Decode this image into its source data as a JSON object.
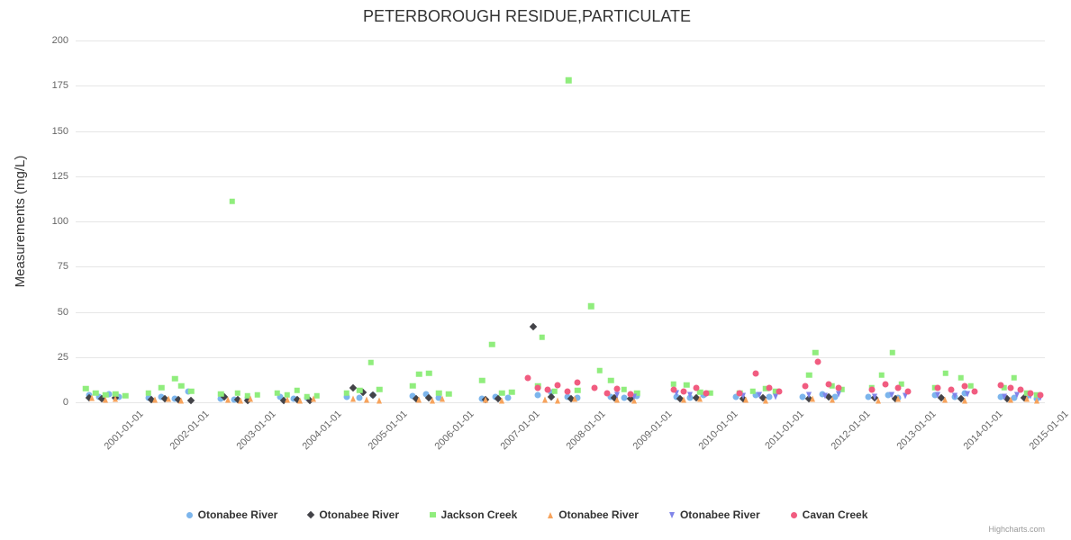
{
  "credits": {
    "label": "Highcharts.com"
  },
  "chart_data": {
    "type": "scatter",
    "title": "PETERBOROUGH RESIDUE,PARTICULATE",
    "xlabel": "",
    "ylabel": "Measurements (mg/L)",
    "ylim": [
      0,
      200
    ],
    "yticks": [
      0,
      25,
      50,
      75,
      100,
      125,
      150,
      175,
      200
    ],
    "x_range": [
      2000.0,
      2014.67
    ],
    "xtick_years": [
      2001,
      2002,
      2003,
      2004,
      2005,
      2006,
      2007,
      2008,
      2009,
      2010,
      2011,
      2012,
      2013,
      2014,
      2015
    ],
    "xtick_labels": [
      "2001-01-01",
      "2002-01-01",
      "2003-01-01",
      "2004-01-01",
      "2005-01-01",
      "2006-01-01",
      "2007-01-01",
      "2008-01-01",
      "2009-01-01",
      "2010-01-01",
      "2011-01-01",
      "2012-01-01",
      "2013-01-01",
      "2014-01-01",
      "2015-01-01"
    ],
    "grid": "horizontal",
    "legend_position": "bottom",
    "series": [
      {
        "name": "Otonabee River",
        "shape": "circle",
        "color": "#7cb5ec",
        "data": [
          [
            2000.2,
            4
          ],
          [
            2000.35,
            3
          ],
          [
            2000.5,
            4.5
          ],
          [
            2000.65,
            3
          ],
          [
            2001.1,
            2.5
          ],
          [
            2001.3,
            3
          ],
          [
            2001.5,
            2
          ],
          [
            2001.7,
            6
          ],
          [
            2002.2,
            2
          ],
          [
            2002.4,
            1.5
          ],
          [
            2002.6,
            2.5
          ],
          [
            2003.1,
            3
          ],
          [
            2003.3,
            2
          ],
          [
            2003.5,
            2.5
          ],
          [
            2004.1,
            3
          ],
          [
            2004.3,
            2.5
          ],
          [
            2004.5,
            4
          ],
          [
            2005.1,
            3.5
          ],
          [
            2005.3,
            4.5
          ],
          [
            2005.5,
            2.5
          ],
          [
            2006.15,
            2
          ],
          [
            2006.35,
            3
          ],
          [
            2006.55,
            2.5
          ],
          [
            2007.0,
            4
          ],
          [
            2007.2,
            5.5
          ],
          [
            2007.45,
            3
          ],
          [
            2007.6,
            2.5
          ],
          [
            2008.1,
            3
          ],
          [
            2008.3,
            2.5
          ],
          [
            2008.5,
            3.5
          ],
          [
            2009.1,
            3
          ],
          [
            2009.3,
            2.5
          ],
          [
            2009.5,
            4
          ],
          [
            2010.0,
            3
          ],
          [
            2010.3,
            4
          ],
          [
            2010.5,
            3
          ],
          [
            2011.0,
            3
          ],
          [
            2011.3,
            4.5
          ],
          [
            2011.5,
            3
          ],
          [
            2012.0,
            3
          ],
          [
            2012.3,
            4
          ],
          [
            2012.45,
            2.5
          ],
          [
            2013.0,
            4
          ],
          [
            2013.3,
            3
          ],
          [
            2013.45,
            5
          ],
          [
            2014.0,
            3
          ],
          [
            2014.2,
            2.5
          ],
          [
            2014.4,
            3.5
          ],
          [
            2014.55,
            2
          ]
        ]
      },
      {
        "name": "Otonabee River",
        "shape": "diamond",
        "color": "#434348",
        "data": [
          [
            2000.2,
            2.5
          ],
          [
            2000.4,
            2
          ],
          [
            2000.6,
            2.5
          ],
          [
            2001.15,
            1.5
          ],
          [
            2001.35,
            2
          ],
          [
            2001.55,
            1.5
          ],
          [
            2001.75,
            1
          ],
          [
            2002.25,
            3
          ],
          [
            2002.45,
            1.5
          ],
          [
            2002.6,
            1
          ],
          [
            2003.15,
            1
          ],
          [
            2003.35,
            1.5
          ],
          [
            2003.55,
            1
          ],
          [
            2004.2,
            8
          ],
          [
            2004.35,
            5.5
          ],
          [
            2004.5,
            4
          ],
          [
            2005.15,
            2
          ],
          [
            2005.35,
            2.5
          ],
          [
            2006.2,
            1.5
          ],
          [
            2006.4,
            2
          ],
          [
            2006.93,
            42
          ],
          [
            2007.2,
            3
          ],
          [
            2007.5,
            2
          ],
          [
            2008.15,
            2.5
          ],
          [
            2008.4,
            2
          ],
          [
            2009.15,
            2
          ],
          [
            2009.4,
            2.5
          ],
          [
            2010.1,
            2
          ],
          [
            2010.4,
            2.5
          ],
          [
            2011.1,
            2
          ],
          [
            2011.4,
            3
          ],
          [
            2012.1,
            2.5
          ],
          [
            2012.4,
            2
          ],
          [
            2013.1,
            2.5
          ],
          [
            2013.4,
            2
          ],
          [
            2014.1,
            2
          ],
          [
            2014.35,
            2.5
          ]
        ]
      },
      {
        "name": "Jackson Creek",
        "shape": "square",
        "color": "#90ed7d",
        "data": [
          [
            2000.15,
            7.5
          ],
          [
            2000.3,
            5
          ],
          [
            2000.45,
            4
          ],
          [
            2000.6,
            4.5
          ],
          [
            2000.75,
            3.5
          ],
          [
            2001.1,
            5
          ],
          [
            2001.3,
            8
          ],
          [
            2001.5,
            13
          ],
          [
            2001.6,
            9
          ],
          [
            2001.75,
            6
          ],
          [
            2002.2,
            4.5
          ],
          [
            2002.37,
            111
          ],
          [
            2002.45,
            5
          ],
          [
            2002.6,
            3.5
          ],
          [
            2002.75,
            4
          ],
          [
            2003.05,
            5
          ],
          [
            2003.2,
            4
          ],
          [
            2003.35,
            6.5
          ],
          [
            2003.5,
            3
          ],
          [
            2003.65,
            3.5
          ],
          [
            2004.1,
            5
          ],
          [
            2004.3,
            6.5
          ],
          [
            2004.47,
            22
          ],
          [
            2004.6,
            7
          ],
          [
            2005.1,
            9
          ],
          [
            2005.2,
            15.5
          ],
          [
            2005.35,
            16
          ],
          [
            2005.5,
            5
          ],
          [
            2005.65,
            4.5
          ],
          [
            2006.15,
            12
          ],
          [
            2006.3,
            32
          ],
          [
            2006.45,
            5
          ],
          [
            2006.6,
            5.5
          ],
          [
            2007.0,
            9
          ],
          [
            2007.06,
            36
          ],
          [
            2007.25,
            6
          ],
          [
            2007.46,
            178
          ],
          [
            2007.6,
            6.5
          ],
          [
            2007.8,
            53
          ],
          [
            2007.93,
            17.5
          ],
          [
            2008.1,
            12
          ],
          [
            2008.3,
            7
          ],
          [
            2008.5,
            5
          ],
          [
            2009.05,
            10
          ],
          [
            2009.25,
            9.5
          ],
          [
            2009.45,
            5.5
          ],
          [
            2009.6,
            5
          ],
          [
            2010.05,
            5
          ],
          [
            2010.25,
            6
          ],
          [
            2010.45,
            7.5
          ],
          [
            2010.6,
            6
          ],
          [
            2011.1,
            15
          ],
          [
            2011.2,
            27.5
          ],
          [
            2011.45,
            9
          ],
          [
            2011.6,
            7
          ],
          [
            2012.05,
            8
          ],
          [
            2012.2,
            15
          ],
          [
            2012.36,
            27.5
          ],
          [
            2012.5,
            10
          ],
          [
            2013.0,
            8
          ],
          [
            2013.17,
            16
          ],
          [
            2013.4,
            13.5
          ],
          [
            2013.55,
            9
          ],
          [
            2014.05,
            8
          ],
          [
            2014.2,
            13.5
          ],
          [
            2014.4,
            5
          ],
          [
            2014.55,
            4
          ]
        ]
      },
      {
        "name": "Otonabee River",
        "shape": "triangle",
        "color": "#f7a35c",
        "data": [
          [
            2000.25,
            2.5
          ],
          [
            2000.45,
            1.5
          ],
          [
            2000.6,
            2
          ],
          [
            2001.2,
            1.5
          ],
          [
            2001.4,
            2
          ],
          [
            2001.6,
            1
          ],
          [
            2002.3,
            1.5
          ],
          [
            2002.5,
            1
          ],
          [
            2002.65,
            2
          ],
          [
            2003.2,
            1.5
          ],
          [
            2003.4,
            1
          ],
          [
            2003.6,
            2
          ],
          [
            2004.2,
            2
          ],
          [
            2004.4,
            1.5
          ],
          [
            2004.6,
            1
          ],
          [
            2005.2,
            1.5
          ],
          [
            2005.4,
            1
          ],
          [
            2005.55,
            2
          ],
          [
            2006.2,
            1.5
          ],
          [
            2006.45,
            1
          ],
          [
            2007.1,
            1.5
          ],
          [
            2007.3,
            1
          ],
          [
            2007.55,
            2
          ],
          [
            2008.2,
            1.5
          ],
          [
            2008.45,
            1
          ],
          [
            2009.2,
            1.5
          ],
          [
            2009.45,
            2
          ],
          [
            2010.15,
            1.5
          ],
          [
            2010.45,
            1
          ],
          [
            2011.15,
            2
          ],
          [
            2011.45,
            1.5
          ],
          [
            2012.15,
            1
          ],
          [
            2012.45,
            2
          ],
          [
            2013.15,
            1.5
          ],
          [
            2013.45,
            1
          ],
          [
            2014.15,
            1.5
          ],
          [
            2014.4,
            2
          ],
          [
            2014.55,
            1
          ]
        ]
      },
      {
        "name": "Otonabee River",
        "shape": "triangle-down",
        "color": "#8085e9",
        "data": [
          [
            2008.2,
            4
          ],
          [
            2008.45,
            3
          ],
          [
            2009.1,
            5
          ],
          [
            2009.3,
            4
          ],
          [
            2009.55,
            4.5
          ],
          [
            2010.1,
            3.5
          ],
          [
            2010.35,
            4
          ],
          [
            2010.6,
            3
          ],
          [
            2011.1,
            4
          ],
          [
            2011.35,
            3.5
          ],
          [
            2011.55,
            4.5
          ],
          [
            2012.1,
            3
          ],
          [
            2012.35,
            4
          ],
          [
            2012.55,
            3.5
          ],
          [
            2013.05,
            4
          ],
          [
            2013.3,
            3.5
          ],
          [
            2013.5,
            4.5
          ],
          [
            2014.05,
            3
          ],
          [
            2014.25,
            4
          ],
          [
            2014.45,
            3.5
          ],
          [
            2014.6,
            2.5
          ]
        ]
      },
      {
        "name": "Cavan Creek",
        "shape": "circle",
        "color": "#f15c80",
        "data": [
          [
            2006.85,
            13.5
          ],
          [
            2007.0,
            8
          ],
          [
            2007.15,
            7
          ],
          [
            2007.3,
            9.5
          ],
          [
            2007.45,
            6
          ],
          [
            2007.6,
            11
          ],
          [
            2007.85,
            8
          ],
          [
            2008.05,
            5
          ],
          [
            2008.2,
            7.5
          ],
          [
            2008.4,
            4.5
          ],
          [
            2009.05,
            7
          ],
          [
            2009.2,
            6
          ],
          [
            2009.4,
            8
          ],
          [
            2009.55,
            5
          ],
          [
            2010.05,
            5
          ],
          [
            2010.3,
            16
          ],
          [
            2010.5,
            8
          ],
          [
            2010.65,
            6
          ],
          [
            2011.05,
            9
          ],
          [
            2011.24,
            22.5
          ],
          [
            2011.4,
            10
          ],
          [
            2011.55,
            8
          ],
          [
            2012.05,
            7
          ],
          [
            2012.25,
            10
          ],
          [
            2012.45,
            8
          ],
          [
            2012.6,
            6
          ],
          [
            2013.05,
            8
          ],
          [
            2013.25,
            7
          ],
          [
            2013.45,
            9
          ],
          [
            2013.6,
            6
          ],
          [
            2014.0,
            9.5
          ],
          [
            2014.15,
            8
          ],
          [
            2014.3,
            7
          ],
          [
            2014.45,
            5
          ],
          [
            2014.6,
            4
          ]
        ]
      }
    ]
  }
}
